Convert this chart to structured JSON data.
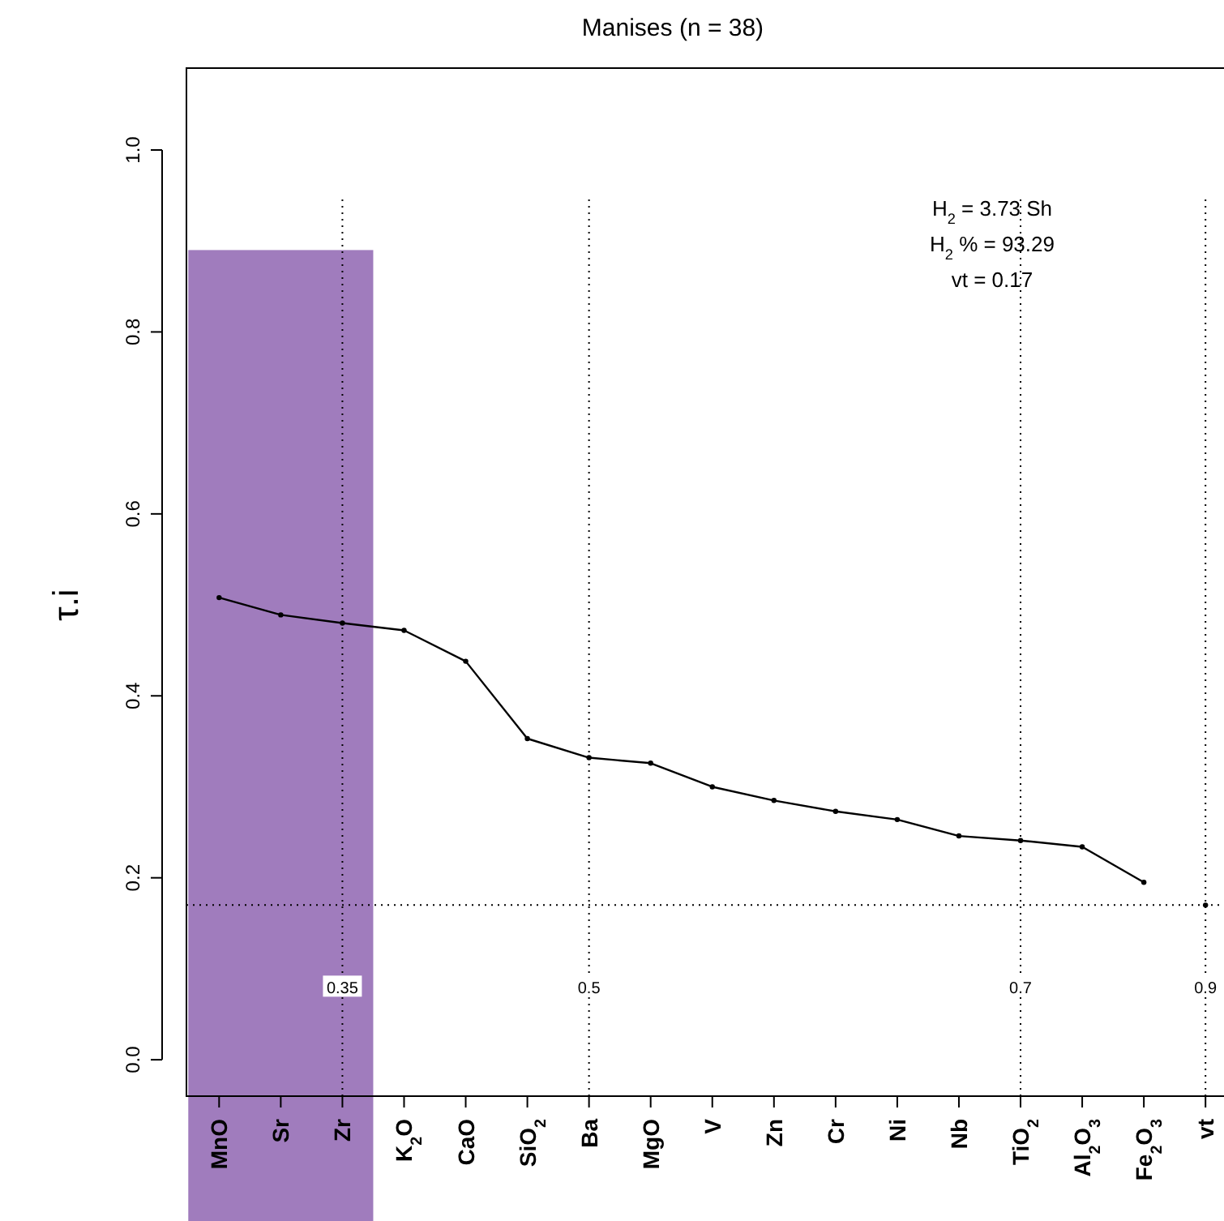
{
  "chart_data": {
    "type": "line",
    "title": "Manises (n = 38)",
    "ylabel": "τ.i",
    "categories": [
      "MnO",
      "Sr",
      "Zr",
      "K$_{2}$O",
      "CaO",
      "SiO$_{2}$",
      "Ba",
      "MgO",
      "V",
      "Zn",
      "Cr",
      "Ni",
      "Nb",
      "TiO$_{2}$",
      "Al$_{2}$O$_{3}$",
      "Fe$_{2}$O$_{3}$",
      "vt"
    ],
    "ylim": [
      -0.04,
      1.09
    ],
    "yticks": [
      {
        "value": 0,
        "label": "0.0"
      },
      {
        "value": 0.2,
        "label": "0.2"
      },
      {
        "value": 0.4,
        "label": "0.4"
      },
      {
        "value": 0.6,
        "label": "0.6"
      },
      {
        "value": 0.8,
        "label": "0.8"
      },
      {
        "value": 1,
        "label": "1.0"
      }
    ],
    "series": [
      {
        "color": "#000000",
        "marker": "circle",
        "values": [
          0.508,
          0.489,
          0.48,
          0.472,
          0.438,
          0.353,
          0.332,
          0.326,
          0.3,
          0.285,
          0.273,
          0.264,
          0.246,
          0.241,
          0.234,
          0.195,
          null
        ]
      },
      {
        "type": "scatter",
        "color": "#000000",
        "marker": "circle",
        "values": [
          null,
          null,
          null,
          null,
          null,
          null,
          null,
          null,
          null,
          null,
          null,
          null,
          null,
          null,
          null,
          null,
          0.17
        ]
      }
    ],
    "bands": [
      {
        "axis": "x",
        "from": "MnO",
        "to": "Zr",
        "color": "#a07cbd"
      }
    ],
    "ref_lines": [
      {
        "axis": "x",
        "value": "Zr",
        "label": "0.35",
        "line_style": "dotted"
      },
      {
        "axis": "x",
        "value": "Ba",
        "label": "0.5",
        "line_style": "dotted"
      },
      {
        "axis": "x",
        "value": "TiO$_{2}$",
        "label": "0.7",
        "line_style": "dotted"
      },
      {
        "axis": "x",
        "value": "vt",
        "label": "0.9",
        "line_style": "dotted"
      },
      {
        "axis": "y",
        "value": 0.17,
        "line_style": "dotted"
      }
    ],
    "annotations": [
      "H$_{2}$ = 3.73 Sh",
      "H$_{2}$ % = 93.29",
      "vt = 0.17"
    ]
  }
}
